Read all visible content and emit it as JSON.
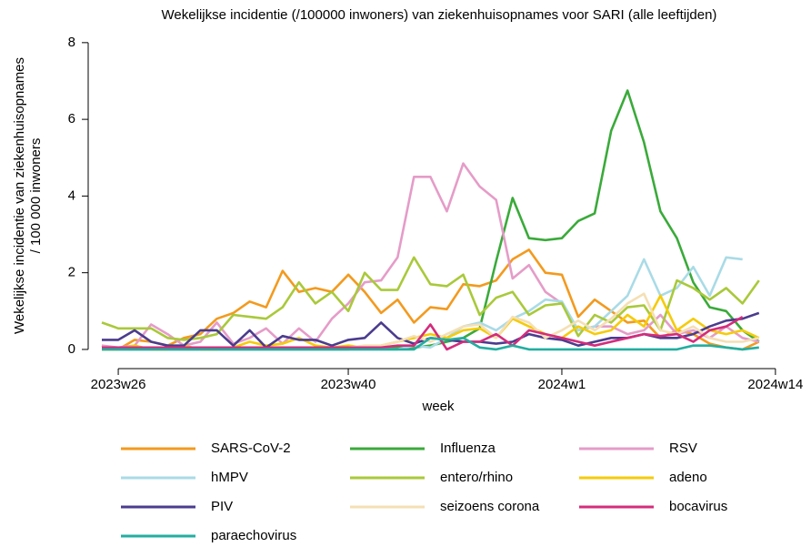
{
  "chart_data": {
    "type": "line",
    "title": "Wekelijkse incidentie (/100000 inwoners) van ziekenhuisopnames voor SARI (alle leeftijden)",
    "y_label": [
      "Wekelijkse incidentie van ziekenhuisopnames",
      "/ 100 000 inwoners"
    ],
    "x_label": "week",
    "categories": [
      null,
      "2023w26",
      null,
      null,
      null,
      null,
      null,
      null,
      null,
      null,
      null,
      null,
      null,
      null,
      null,
      "2023w40",
      null,
      null,
      null,
      null,
      null,
      null,
      null,
      null,
      null,
      null,
      null,
      null,
      "2024w1",
      null,
      null,
      null,
      null,
      null,
      null,
      null,
      null,
      null,
      null,
      null,
      null,
      "2024w14"
    ],
    "ylim": [
      -0.5,
      8.4
    ],
    "yticks": [
      0,
      2,
      4,
      6,
      8
    ],
    "series": [
      {
        "name": "SARS-CoV-2",
        "color": "#f39a1e",
        "values": [
          0.1,
          0,
          0.25,
          0.2,
          0.1,
          0.3,
          0.4,
          0.8,
          0.95,
          1.25,
          1.1,
          2.05,
          1.5,
          1.6,
          1.5,
          1.95,
          1.5,
          0.95,
          1.3,
          0.7,
          1.1,
          1.05,
          1.7,
          1.65,
          1.8,
          2.35,
          2.6,
          2.0,
          1.95,
          0.85,
          1.3,
          1.0,
          0.7,
          0.75,
          0.3,
          0.5,
          0.4,
          0.15,
          0.05,
          0,
          0.2,
          null
        ]
      },
      {
        "name": "Influenza",
        "color": "#3aaa3a",
        "values": [
          0,
          0,
          0,
          0,
          0,
          0,
          0,
          0,
          0,
          0,
          0,
          0,
          0,
          0,
          0,
          0,
          0.05,
          0.05,
          0.05,
          0.05,
          0.1,
          0.2,
          0.3,
          0.55,
          2.3,
          3.95,
          2.9,
          2.85,
          2.9,
          3.35,
          3.55,
          5.7,
          6.75,
          5.4,
          3.6,
          2.9,
          1.75,
          1.1,
          1.0,
          0.5,
          0.2,
          null
        ]
      },
      {
        "name": "RSV",
        "color": "#e59cc8",
        "values": [
          0.1,
          0.05,
          0.1,
          0.65,
          0.4,
          0.1,
          0.2,
          0.7,
          0.15,
          0.3,
          0.55,
          0.15,
          0.55,
          0.2,
          0.8,
          1.2,
          1.75,
          1.8,
          2.4,
          4.5,
          4.5,
          3.6,
          4.85,
          4.25,
          3.9,
          1.85,
          2.2,
          1.5,
          1.2,
          0.5,
          0.6,
          0.6,
          0.4,
          0.5,
          0.9,
          0.4,
          0.5,
          0.3,
          0.6,
          0.3,
          0.2,
          null
        ]
      },
      {
        "name": "hMPV",
        "color": "#a9dbe6",
        "values": [
          0,
          0,
          0,
          0,
          0,
          0,
          0,
          0,
          0,
          0,
          0,
          0,
          0,
          0,
          0,
          0,
          0,
          0,
          0,
          0.1,
          0.05,
          0.3,
          0.6,
          0.7,
          0.5,
          0.8,
          1.0,
          1.3,
          1.25,
          0.5,
          0.6,
          1.0,
          1.4,
          2.35,
          1.4,
          1.6,
          2.15,
          1.4,
          2.4,
          2.35,
          null,
          null
        ]
      },
      {
        "name": "entero/rhino",
        "color": "#a9c93a",
        "values": [
          0.7,
          0.55,
          0.55,
          0.55,
          0.3,
          0.25,
          0.3,
          0.4,
          0.9,
          0.85,
          0.8,
          1.1,
          1.75,
          1.2,
          1.5,
          1.0,
          2.0,
          1.55,
          1.55,
          2.4,
          1.7,
          1.65,
          1.95,
          0.9,
          1.35,
          1.5,
          0.9,
          1.15,
          1.2,
          0.35,
          0.9,
          0.7,
          1.1,
          1.15,
          0.5,
          1.8,
          1.6,
          1.3,
          1.6,
          1.2,
          1.8,
          null
        ]
      },
      {
        "name": "adeno",
        "color": "#f5cb0a",
        "values": [
          0,
          0,
          0.1,
          0,
          0,
          0.1,
          0,
          0,
          0.05,
          0.2,
          0.1,
          0.15,
          0.3,
          0.1,
          0.05,
          0.1,
          0.05,
          0.1,
          0.2,
          0.3,
          0.4,
          0.3,
          0.5,
          0.55,
          0.3,
          0.8,
          0.6,
          0.4,
          0.3,
          0.6,
          0.4,
          0.5,
          0.9,
          0.6,
          1.4,
          0.5,
          0.8,
          0.5,
          0.4,
          0.5,
          0.3,
          null
        ]
      },
      {
        "name": "PIV",
        "color": "#4b3c8e",
        "values": [
          0.25,
          0.25,
          0.5,
          0.2,
          0.1,
          0.1,
          0.5,
          0.5,
          0.1,
          0.5,
          0.05,
          0.35,
          0.25,
          0.25,
          0.1,
          0.25,
          0.3,
          0.7,
          0.3,
          0.15,
          0.3,
          0.25,
          0.2,
          0.2,
          0.15,
          0.2,
          0.4,
          0.3,
          0.25,
          0.1,
          0.2,
          0.3,
          0.3,
          0.4,
          0.3,
          0.3,
          0.4,
          0.6,
          0.75,
          0.8,
          0.95,
          null
        ]
      },
      {
        "name": "seizoens corona",
        "color": "#f5dfb4",
        "values": [
          0.05,
          0.05,
          0.05,
          0.05,
          0.05,
          0.05,
          0.05,
          0.05,
          0.05,
          0.05,
          0.05,
          0.05,
          0.05,
          0.05,
          0.05,
          0.05,
          0.1,
          0.1,
          0.2,
          0.35,
          0.2,
          0.4,
          0.6,
          0.65,
          0.3,
          0.85,
          0.7,
          0.3,
          0.5,
          0.75,
          0.5,
          0.8,
          1.2,
          1.45,
          0.5,
          0.4,
          0.6,
          0.3,
          0.2,
          0.2,
          0.3,
          null
        ]
      },
      {
        "name": "bocavirus",
        "color": "#d42c7c",
        "values": [
          0.05,
          0.05,
          0.05,
          0.05,
          0.05,
          0.05,
          0.05,
          0.05,
          0.05,
          0.05,
          0.05,
          0.05,
          0.05,
          0.05,
          0.05,
          0.05,
          0.05,
          0.05,
          0.1,
          0.1,
          0.65,
          0,
          0.2,
          0.2,
          0.4,
          0.1,
          0.5,
          0.4,
          0.3,
          0.2,
          0.1,
          0.2,
          0.3,
          0.4,
          0.35,
          0.4,
          0.2,
          0.5,
          0.6,
          0.85,
          null,
          null
        ]
      },
      {
        "name": "paraechovirus",
        "color": "#22aea0",
        "values": [
          0,
          0,
          0,
          0,
          0,
          0,
          0,
          0,
          0,
          0,
          0,
          0,
          0,
          0,
          0,
          0,
          0,
          0,
          0,
          0,
          0.3,
          0.25,
          0.3,
          0.05,
          0,
          0.1,
          0,
          0,
          0,
          0,
          0,
          0,
          0,
          0,
          0,
          0,
          0.1,
          0.1,
          0.05,
          0,
          0.05,
          null
        ]
      }
    ]
  }
}
